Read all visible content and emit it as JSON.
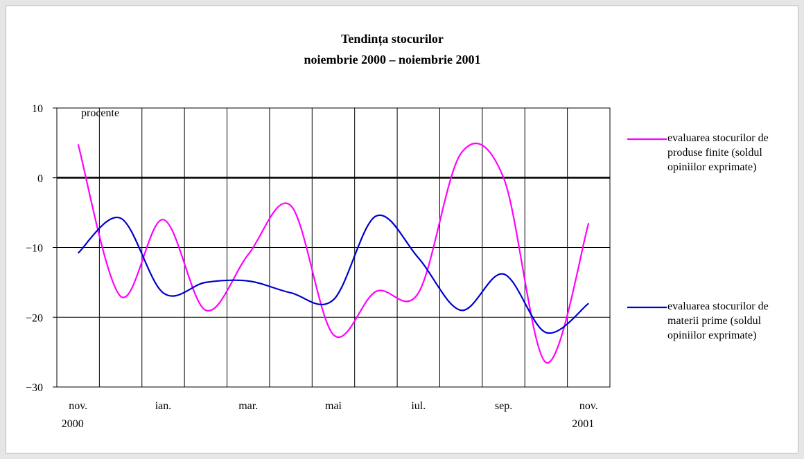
{
  "chart_data": {
    "type": "line",
    "title": "Tendința stocurilor",
    "subtitle": "noiembrie 2000 – noiembrie 2001",
    "y_label": "procente",
    "categories": [
      "nov. 2000",
      null,
      "ian.",
      null,
      "mar.",
      null,
      "mai",
      null,
      "iul.",
      null,
      "sep.",
      null,
      "nov. 2001"
    ],
    "ylim": [
      -30,
      10
    ],
    "yticks": [
      10,
      0,
      {
        "value": -10,
        "label": "−10"
      },
      {
        "value": -20,
        "label": "−20"
      },
      {
        "value": -30,
        "label": "−30"
      }
    ],
    "grid": true,
    "smooth": true,
    "legend": "right",
    "series": [
      {
        "name": "evaluarea stocurilor de produse finite (soldul opiniilor exprimate)",
        "color": "#ff00ff",
        "values": [
          4.8,
          -17,
          -6,
          -19,
          -11,
          -4,
          -22.5,
          -16.3,
          -16.5,
          3.5,
          0,
          -26.5,
          -6.5
        ]
      },
      {
        "name": "evaluarea stocurilor de materii prime (soldul opiniilor exprimate)",
        "color": "#0000cc",
        "values": [
          -10.8,
          -5.8,
          -16.5,
          -15,
          -14.8,
          -16.5,
          -17.5,
          -5.5,
          -11.5,
          -19,
          -13.8,
          -22.2,
          -18
        ]
      }
    ]
  }
}
